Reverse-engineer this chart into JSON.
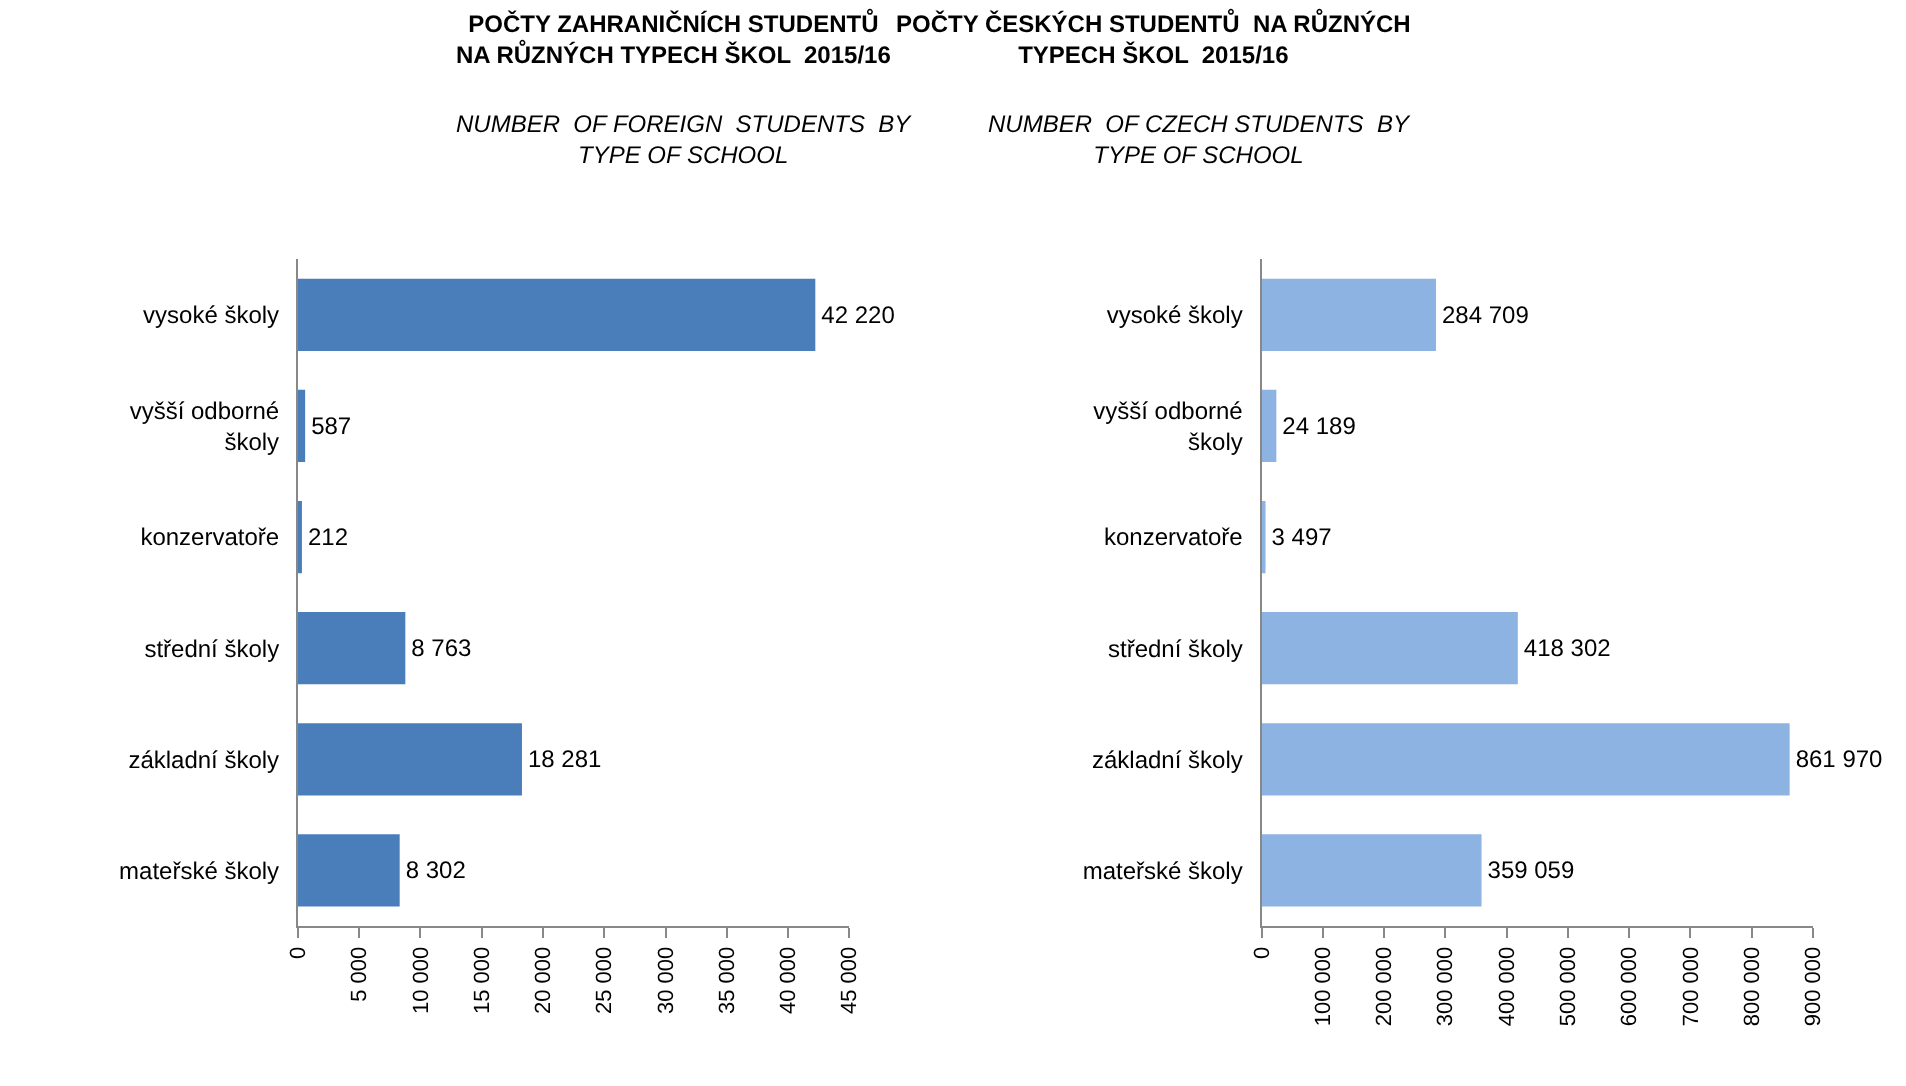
{
  "chart_data": [
    {
      "type": "bar",
      "orientation": "horizontal",
      "title": "POČTY ZAHRANIČNÍCH STUDENTŮ\nNA RŮZNÝCH TYPECH ŠKOL  2015/16",
      "subtitle": "NUMBER  OF FOREIGN  STUDENTS  BY\nTYPE OF SCHOOL",
      "categories": [
        "vysoké školy",
        "vyšší odborné\nškoly",
        "konzervatoře",
        "střední školy",
        "základní školy",
        "mateřské školy"
      ],
      "values": [
        42220,
        587,
        212,
        8763,
        18281,
        8302
      ],
      "color": "#4a7ebb",
      "value_labels": [
        "42 220",
        "587",
        "212",
        "8 763",
        "18 281",
        "8 302"
      ],
      "xlim": [
        0,
        45000
      ],
      "xticks": [
        0,
        {
          "value": 5000,
          "label": "5 000"
        },
        {
          "value": 10000,
          "label": "10 000"
        },
        {
          "value": 15000,
          "label": "15 000"
        },
        {
          "value": 20000,
          "label": "20 000"
        },
        {
          "value": 25000,
          "label": "25 000"
        },
        {
          "value": 30000,
          "label": "30 000"
        },
        {
          "value": 35000,
          "label": "35 000"
        },
        {
          "value": 40000,
          "label": "40 000"
        },
        {
          "value": 45000,
          "label": "45 000"
        }
      ]
    },
    {
      "type": "bar",
      "orientation": "horizontal",
      "title": "POČTY ČESKÝCH STUDENTŮ  NA RŮZNÝCH\nTYPECH ŠKOL  2015/16",
      "subtitle": "NUMBER  OF CZECH STUDENTS  BY\nTYPE OF SCHOOL",
      "categories": [
        "vysoké školy",
        "vyšší odborné\nškoly",
        "konzervatoře",
        "střední školy",
        "základní školy",
        "mateřské školy"
      ],
      "values": [
        284709,
        24189,
        3497,
        418302,
        861970,
        359059
      ],
      "color": "#8db3e2",
      "value_labels": [
        "284 709",
        "24 189",
        "3 497",
        "418 302",
        "861 970",
        "359 059"
      ],
      "xlim": [
        0,
        900000
      ],
      "xticks": [
        0,
        {
          "value": 100000,
          "label": "100 000"
        },
        {
          "value": 200000,
          "label": "200 000"
        },
        {
          "value": 300000,
          "label": "300 000"
        },
        {
          "value": 400000,
          "label": "400 000"
        },
        {
          "value": 500000,
          "label": "500 000"
        },
        {
          "value": 600000,
          "label": "600 000"
        },
        {
          "value": 700000,
          "label": "700 000"
        },
        {
          "value": 800000,
          "label": "800 000"
        },
        {
          "value": 900000,
          "label": "900 000"
        }
      ]
    }
  ]
}
